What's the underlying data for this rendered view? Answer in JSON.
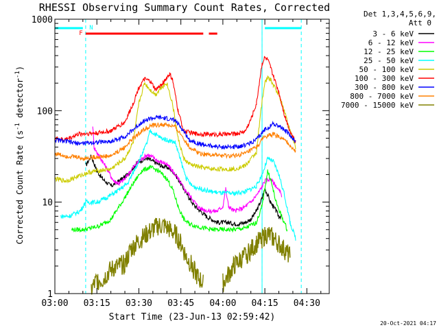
{
  "chart_data": {
    "type": "line",
    "title": "RHESSI Observing Summary Count Rates, Corrected",
    "xlabel": "Start Time (23-Jun-13 02:59:42)",
    "ylabel": "Corrected Count Rate (s⁻¹ detector⁻¹)",
    "ylabel_parts": [
      "Corrected Count Rate (s",
      "-1",
      " detector",
      "-1",
      ")"
    ],
    "y_scale": "log",
    "ylim": [
      1,
      1000
    ],
    "xlim_minutes": [
      0,
      98
    ],
    "x_ticks": [
      {
        "t": 0,
        "label": "03:00"
      },
      {
        "t": 15,
        "label": "03:15"
      },
      {
        "t": 30,
        "label": "03:30"
      },
      {
        "t": 45,
        "label": "03:45"
      },
      {
        "t": 60,
        "label": "04:00"
      },
      {
        "t": 75,
        "label": "04:15"
      },
      {
        "t": 90,
        "label": "04:30"
      }
    ],
    "y_ticks": [
      {
        "v": 1,
        "label": "1"
      },
      {
        "v": 10,
        "label": "10"
      },
      {
        "v": 100,
        "label": "100"
      },
      {
        "v": 1000,
        "label": "1000"
      }
    ],
    "legend": {
      "position": "right",
      "header": [
        "Det 1,3,4,5,6,9,",
        "Att 0"
      ]
    },
    "series": [
      {
        "name": "3 - 6 keV",
        "color": "#000000",
        "points": [
          [
            10,
            null
          ],
          [
            11,
            25
          ],
          [
            13,
            32
          ],
          [
            15,
            22
          ],
          [
            17,
            18
          ],
          [
            20,
            15
          ],
          [
            23,
            17
          ],
          [
            26,
            20
          ],
          [
            28,
            24
          ],
          [
            30,
            28
          ],
          [
            33,
            30
          ],
          [
            35,
            28
          ],
          [
            38,
            25
          ],
          [
            40,
            24
          ],
          [
            42,
            22
          ],
          [
            44,
            18
          ],
          [
            46,
            14
          ],
          [
            48,
            11
          ],
          [
            50,
            9
          ],
          [
            52,
            8
          ],
          [
            54,
            7
          ],
          [
            56,
            6.5
          ],
          [
            58,
            6
          ],
          [
            60,
            6
          ],
          [
            62,
            6
          ],
          [
            64,
            5.8
          ],
          [
            66,
            5.8
          ],
          [
            68,
            6
          ],
          [
            70,
            6.5
          ],
          [
            72,
            8
          ],
          [
            74,
            11
          ],
          [
            75,
            14
          ],
          [
            76,
            12
          ],
          [
            77,
            10
          ],
          [
            78,
            9
          ],
          [
            79,
            8
          ],
          [
            80,
            7
          ],
          [
            81,
            7
          ],
          [
            82,
            null
          ]
        ]
      },
      {
        "name": "6 - 12 keV",
        "color": "#ff00ff",
        "points": [
          [
            13,
            null
          ],
          [
            13.5,
            70
          ],
          [
            14,
            40
          ],
          [
            15,
            35
          ],
          [
            17,
            28
          ],
          [
            19,
            22
          ],
          [
            21,
            17
          ],
          [
            23,
            16
          ],
          [
            25,
            18
          ],
          [
            27,
            22
          ],
          [
            30,
            28
          ],
          [
            33,
            33
          ],
          [
            35,
            31
          ],
          [
            37,
            28
          ],
          [
            39,
            27
          ],
          [
            41,
            24
          ],
          [
            43,
            20
          ],
          [
            45,
            16
          ],
          [
            47,
            13
          ],
          [
            49,
            11
          ],
          [
            51,
            9
          ],
          [
            52,
            8.5
          ],
          [
            55,
            8
          ],
          [
            58,
            8
          ],
          [
            60,
            9
          ],
          [
            61,
            14
          ],
          [
            62,
            9
          ],
          [
            64,
            8
          ],
          [
            67,
            8.5
          ],
          [
            70,
            10
          ],
          [
            73,
            13
          ],
          [
            75,
            17
          ],
          [
            77,
            18
          ],
          [
            79,
            15
          ],
          [
            81,
            12
          ],
          [
            82,
            null
          ]
        ]
      },
      {
        "name": "12 - 25 keV",
        "color": "#00ff00",
        "points": [
          [
            2,
            null
          ],
          [
            6,
            5
          ],
          [
            10,
            5
          ],
          [
            13,
            5.2
          ],
          [
            16,
            5.5
          ],
          [
            20,
            6.5
          ],
          [
            24,
            10
          ],
          [
            28,
            16
          ],
          [
            31,
            22
          ],
          [
            34,
            24
          ],
          [
            37,
            22
          ],
          [
            40,
            18
          ],
          [
            42,
            14
          ],
          [
            44,
            9
          ],
          [
            46,
            6.5
          ],
          [
            48,
            5.8
          ],
          [
            52,
            5.3
          ],
          [
            56,
            5
          ],
          [
            60,
            5
          ],
          [
            64,
            5
          ],
          [
            68,
            5.2
          ],
          [
            72,
            6
          ],
          [
            74,
            9
          ],
          [
            76,
            22
          ],
          [
            77,
            18
          ],
          [
            79,
            10
          ],
          [
            81,
            7
          ],
          [
            83,
            5
          ],
          [
            86,
            null
          ]
        ]
      },
      {
        "name": "25 - 50 keV",
        "color": "#00ffff",
        "points": [
          [
            2,
            7
          ],
          [
            5,
            7
          ],
          [
            9,
            8
          ],
          [
            11,
            10
          ],
          [
            13,
            10
          ],
          [
            15,
            10
          ],
          [
            18,
            11
          ],
          [
            22,
            13
          ],
          [
            26,
            16
          ],
          [
            30,
            28
          ],
          [
            33,
            45
          ],
          [
            34,
            60
          ],
          [
            36,
            55
          ],
          [
            38,
            50
          ],
          [
            40,
            48
          ],
          [
            43,
            45
          ],
          [
            45,
            28
          ],
          [
            47,
            18
          ],
          [
            49,
            15
          ],
          [
            52,
            14
          ],
          [
            56,
            13
          ],
          [
            60,
            12.5
          ],
          [
            64,
            12.5
          ],
          [
            68,
            13
          ],
          [
            72,
            15
          ],
          [
            74,
            20
          ],
          [
            76,
            30
          ],
          [
            78,
            28
          ],
          [
            80,
            20
          ],
          [
            82,
            12
          ],
          [
            84,
            6
          ],
          [
            86,
            4
          ],
          [
            88,
            null
          ]
        ]
      },
      {
        "name": "50 - 100 keV",
        "color": "#cccc00",
        "points": [
          [
            0,
            18
          ],
          [
            4,
            17
          ],
          [
            8,
            19
          ],
          [
            10,
            20
          ],
          [
            12,
            21
          ],
          [
            15,
            22
          ],
          [
            20,
            23
          ],
          [
            25,
            30
          ],
          [
            28,
            45
          ],
          [
            30,
            120
          ],
          [
            32,
            200
          ],
          [
            34,
            170
          ],
          [
            36,
            150
          ],
          [
            38,
            180
          ],
          [
            40,
            200
          ],
          [
            42,
            120
          ],
          [
            44,
            50
          ],
          [
            46,
            30
          ],
          [
            48,
            26
          ],
          [
            52,
            24
          ],
          [
            56,
            23
          ],
          [
            60,
            23
          ],
          [
            64,
            23
          ],
          [
            68,
            25
          ],
          [
            72,
            35
          ],
          [
            74,
            130
          ],
          [
            75,
            200
          ],
          [
            76,
            230
          ],
          [
            77,
            220
          ],
          [
            78,
            190
          ],
          [
            80,
            150
          ],
          [
            82,
            100
          ],
          [
            84,
            60
          ],
          [
            86,
            40
          ],
          [
            88,
            null
          ]
        ]
      },
      {
        "name": "100 - 300 keV",
        "color": "#ff0000",
        "points": [
          [
            0,
            50
          ],
          [
            3,
            48
          ],
          [
            5,
            50
          ],
          [
            8,
            55
          ],
          [
            10,
            56
          ],
          [
            15,
            57
          ],
          [
            20,
            60
          ],
          [
            25,
            75
          ],
          [
            28,
            120
          ],
          [
            30,
            180
          ],
          [
            32,
            220
          ],
          [
            34,
            210
          ],
          [
            36,
            170
          ],
          [
            38,
            190
          ],
          [
            40,
            230
          ],
          [
            41,
            250
          ],
          [
            42,
            220
          ],
          [
            44,
            100
          ],
          [
            46,
            60
          ],
          [
            50,
            56
          ],
          [
            55,
            55
          ],
          [
            60,
            55
          ],
          [
            65,
            56
          ],
          [
            68,
            60
          ],
          [
            70,
            80
          ],
          [
            72,
            120
          ],
          [
            73,
            200
          ],
          [
            74,
            330
          ],
          [
            75,
            380
          ],
          [
            76,
            360
          ],
          [
            77,
            300
          ],
          [
            78,
            240
          ],
          [
            80,
            160
          ],
          [
            82,
            90
          ],
          [
            84,
            60
          ],
          [
            86,
            45
          ],
          [
            88,
            null
          ]
        ]
      },
      {
        "name": "300 - 800 keV",
        "color": "#0000ff",
        "points": [
          [
            0,
            48
          ],
          [
            4,
            46
          ],
          [
            8,
            44
          ],
          [
            10,
            44
          ],
          [
            14,
            45
          ],
          [
            20,
            46
          ],
          [
            25,
            52
          ],
          [
            28,
            62
          ],
          [
            31,
            75
          ],
          [
            34,
            82
          ],
          [
            37,
            84
          ],
          [
            40,
            82
          ],
          [
            43,
            78
          ],
          [
            46,
            60
          ],
          [
            48,
            48
          ],
          [
            52,
            43
          ],
          [
            56,
            41
          ],
          [
            60,
            40
          ],
          [
            64,
            40
          ],
          [
            68,
            42
          ],
          [
            72,
            48
          ],
          [
            75,
            62
          ],
          [
            78,
            72
          ],
          [
            80,
            68
          ],
          [
            83,
            58
          ],
          [
            86,
            46
          ],
          [
            88,
            null
          ]
        ]
      },
      {
        "name": "800 - 7000 keV",
        "color": "#ff8000",
        "points": [
          [
            0,
            34
          ],
          [
            4,
            32
          ],
          [
            8,
            31
          ],
          [
            10,
            30
          ],
          [
            14,
            31
          ],
          [
            20,
            32
          ],
          [
            25,
            40
          ],
          [
            28,
            50
          ],
          [
            31,
            60
          ],
          [
            34,
            68
          ],
          [
            37,
            70
          ],
          [
            40,
            70
          ],
          [
            43,
            66
          ],
          [
            46,
            50
          ],
          [
            48,
            40
          ],
          [
            52,
            34
          ],
          [
            56,
            33
          ],
          [
            60,
            32
          ],
          [
            64,
            32
          ],
          [
            68,
            34
          ],
          [
            72,
            40
          ],
          [
            75,
            52
          ],
          [
            78,
            55
          ],
          [
            80,
            52
          ],
          [
            83,
            45
          ],
          [
            86,
            36
          ],
          [
            88,
            null
          ]
        ]
      },
      {
        "name": "7000 - 15000 keV",
        "color": "#808000",
        "points": [
          [
            13,
            1.1
          ],
          [
            15,
            1.4
          ],
          [
            17,
            1.4
          ],
          [
            19,
            1.7
          ],
          [
            21,
            1.9
          ],
          [
            23,
            2.0
          ],
          [
            25,
            2.1
          ],
          [
            27,
            3.0
          ],
          [
            29,
            3.5
          ],
          [
            31,
            4.0
          ],
          [
            33,
            4.5
          ],
          [
            35,
            5.0
          ],
          [
            37,
            5.5
          ],
          [
            39,
            5.5
          ],
          [
            41,
            5.0
          ],
          [
            43,
            4.5
          ],
          [
            45,
            3.5
          ],
          [
            47,
            2.5
          ],
          [
            49,
            2.0
          ],
          [
            51,
            1.5
          ],
          [
            53,
            1.3
          ],
          [
            54,
            null
          ],
          [
            58,
            null
          ],
          [
            60,
            1.3
          ],
          [
            62,
            1.6
          ],
          [
            64,
            2.0
          ],
          [
            66,
            2.3
          ],
          [
            68,
            2.6
          ],
          [
            70,
            3.0
          ],
          [
            72,
            3.5
          ],
          [
            74,
            4.0
          ],
          [
            76,
            4.5
          ],
          [
            78,
            4.0
          ],
          [
            80,
            3.5
          ],
          [
            82,
            3.0
          ],
          [
            84,
            2.5
          ],
          [
            86,
            null
          ]
        ]
      }
    ],
    "markers": {
      "top_left_label": "F",
      "top_n_label": "N",
      "cyan_dashed_lines_minutes": [
        11,
        74,
        88
      ],
      "cyan_bars_minutes": [
        [
          0,
          10
        ],
        [
          75,
          88
        ]
      ],
      "red_bars_minutes": [
        [
          11,
          53
        ],
        [
          55,
          58
        ]
      ]
    },
    "footer_stamp": "20-Oct-2021 04:17"
  }
}
